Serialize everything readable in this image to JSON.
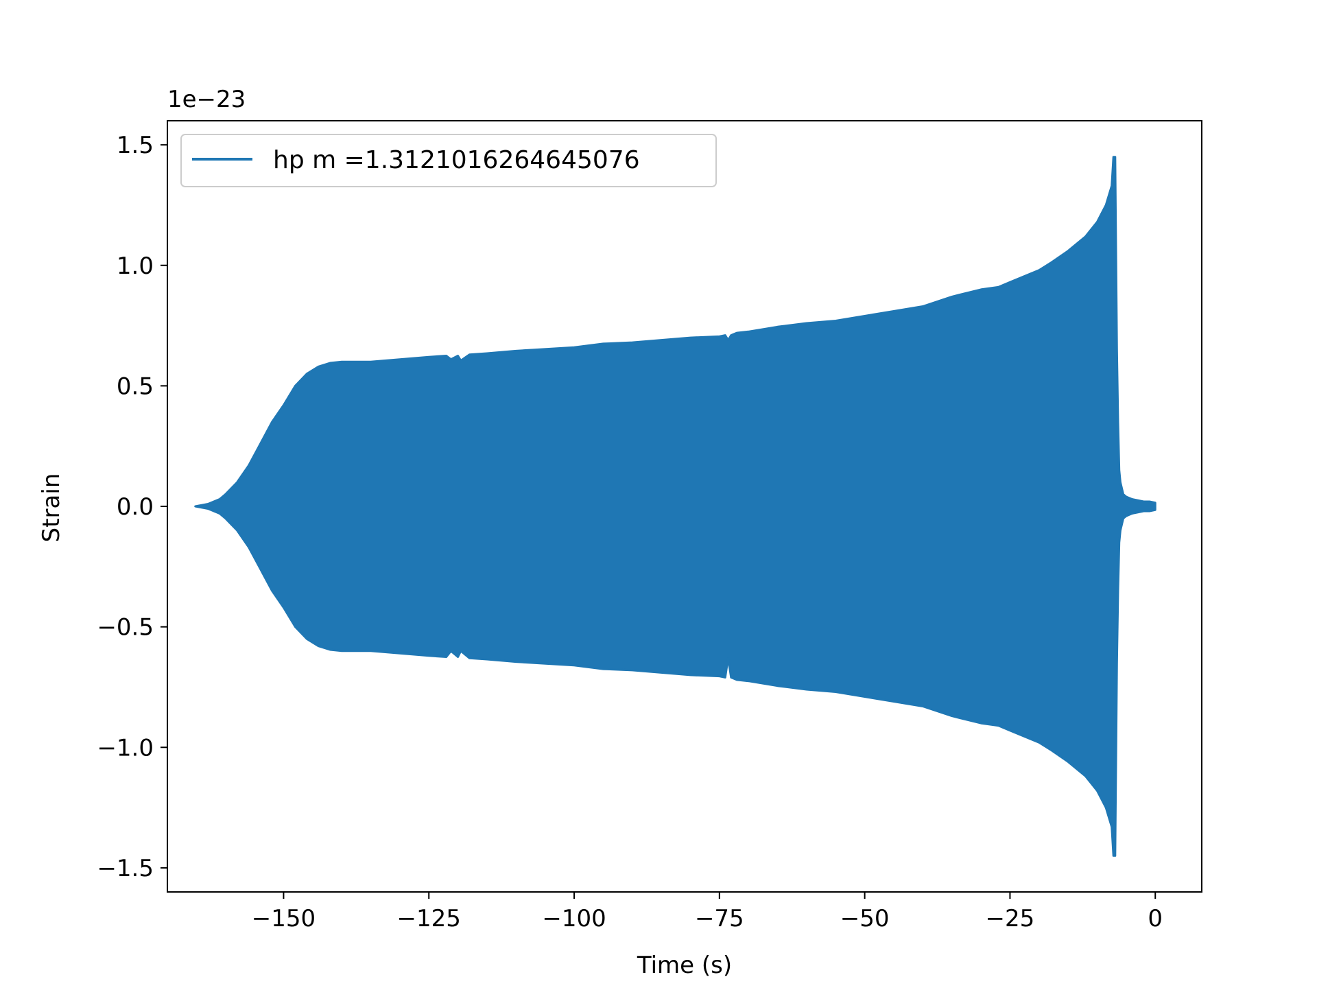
{
  "chart_data": {
    "type": "line",
    "title": "",
    "xlabel": "Time (s)",
    "ylabel": "Strain",
    "y_offset_label": "1e−23",
    "y_scale": 1e-23,
    "xlim": [
      -170,
      8
    ],
    "ylim": [
      -1.6,
      1.6
    ],
    "xticks": [
      -150,
      -125,
      -100,
      -75,
      -50,
      -25,
      0
    ],
    "xtick_labels": [
      "−150",
      "−125",
      "−100",
      "−75",
      "−50",
      "−25",
      "0"
    ],
    "yticks": [
      1.5,
      1.0,
      0.5,
      0.0,
      -0.5,
      -1.0,
      -1.5
    ],
    "ytick_labels": [
      "1.5",
      "1.0",
      "0.5",
      "0.0",
      "−0.5",
      "−1.0",
      "−1.5"
    ],
    "grid": false,
    "legend_position": "upper-left",
    "series": [
      {
        "name": "hp m =1.3121016264645076",
        "color": "#1f77b4",
        "envelope_note_units": "strain in units of 1e-23",
        "envelope_upper": {
          "t": [
            -165.2,
            -163,
            -161,
            -160,
            -158,
            -156,
            -154,
            -152,
            -150,
            -148,
            -146,
            -144,
            -142,
            -140,
            -135,
            -130,
            -125,
            -122,
            -121.2,
            -120,
            -119.5,
            -118,
            -115,
            -110,
            -100,
            -95,
            -90,
            -85,
            -80,
            -75,
            -74,
            -73.5,
            -73,
            -72,
            -70,
            -65,
            -60,
            -55,
            -50,
            -45,
            -40,
            -35,
            -30,
            -27,
            -25,
            -22,
            -20,
            -18,
            -15,
            -12,
            -10,
            -8.5,
            -7.5,
            -7.2,
            -6.9,
            -6.6,
            -6.4,
            -6.2,
            -6.0,
            -5.5,
            -5.0,
            -4.0,
            -3.0,
            -2.0,
            -1.0,
            0.0
          ],
          "y": [
            0.0,
            0.01,
            0.03,
            0.05,
            0.1,
            0.17,
            0.26,
            0.35,
            0.42,
            0.5,
            0.55,
            0.58,
            0.595,
            0.6,
            0.6,
            0.61,
            0.62,
            0.625,
            0.61,
            0.625,
            0.605,
            0.63,
            0.635,
            0.645,
            0.66,
            0.675,
            0.68,
            0.69,
            0.7,
            0.705,
            0.71,
            0.69,
            0.71,
            0.72,
            0.725,
            0.745,
            0.76,
            0.77,
            0.79,
            0.81,
            0.83,
            0.87,
            0.9,
            0.91,
            0.93,
            0.96,
            0.98,
            1.01,
            1.06,
            1.12,
            1.18,
            1.25,
            1.33,
            1.45,
            1.45,
            0.65,
            0.35,
            0.15,
            0.1,
            0.05,
            0.04,
            0.03,
            0.025,
            0.02,
            0.02,
            0.015
          ]
        },
        "envelope_lower": {
          "t": [
            -165.2,
            -163,
            -161,
            -160,
            -158,
            -156,
            -154,
            -152,
            -150,
            -148,
            -146,
            -144,
            -142,
            -140,
            -135,
            -130,
            -125,
            -122,
            -121.2,
            -120,
            -119.5,
            -118,
            -115,
            -110,
            -100,
            -95,
            -90,
            -85,
            -80,
            -75,
            -74,
            -73.5,
            -73,
            -72,
            -70,
            -65,
            -60,
            -55,
            -50,
            -45,
            -40,
            -35,
            -30,
            -27,
            -25,
            -22,
            -20,
            -18,
            -15,
            -12,
            -10,
            -8.5,
            -7.5,
            -7.2,
            -6.9,
            -6.6,
            -6.4,
            -6.2,
            -6.0,
            -5.5,
            -5.0,
            -4.0,
            -3.0,
            -2.0,
            -1.0,
            0.0
          ],
          "y": [
            0.0,
            -0.01,
            -0.03,
            -0.05,
            -0.1,
            -0.17,
            -0.26,
            -0.35,
            -0.42,
            -0.5,
            -0.55,
            -0.58,
            -0.595,
            -0.6,
            -0.6,
            -0.61,
            -0.62,
            -0.625,
            -0.6,
            -0.625,
            -0.6,
            -0.63,
            -0.635,
            -0.645,
            -0.66,
            -0.675,
            -0.68,
            -0.69,
            -0.7,
            -0.705,
            -0.71,
            -0.63,
            -0.71,
            -0.72,
            -0.725,
            -0.745,
            -0.76,
            -0.77,
            -0.79,
            -0.81,
            -0.83,
            -0.87,
            -0.9,
            -0.91,
            -0.93,
            -0.96,
            -0.98,
            -1.01,
            -1.06,
            -1.12,
            -1.18,
            -1.25,
            -1.33,
            -1.45,
            -1.45,
            -0.65,
            -0.35,
            -0.15,
            -0.1,
            -0.05,
            -0.04,
            -0.03,
            -0.025,
            -0.02,
            -0.02,
            -0.015
          ]
        }
      }
    ]
  }
}
